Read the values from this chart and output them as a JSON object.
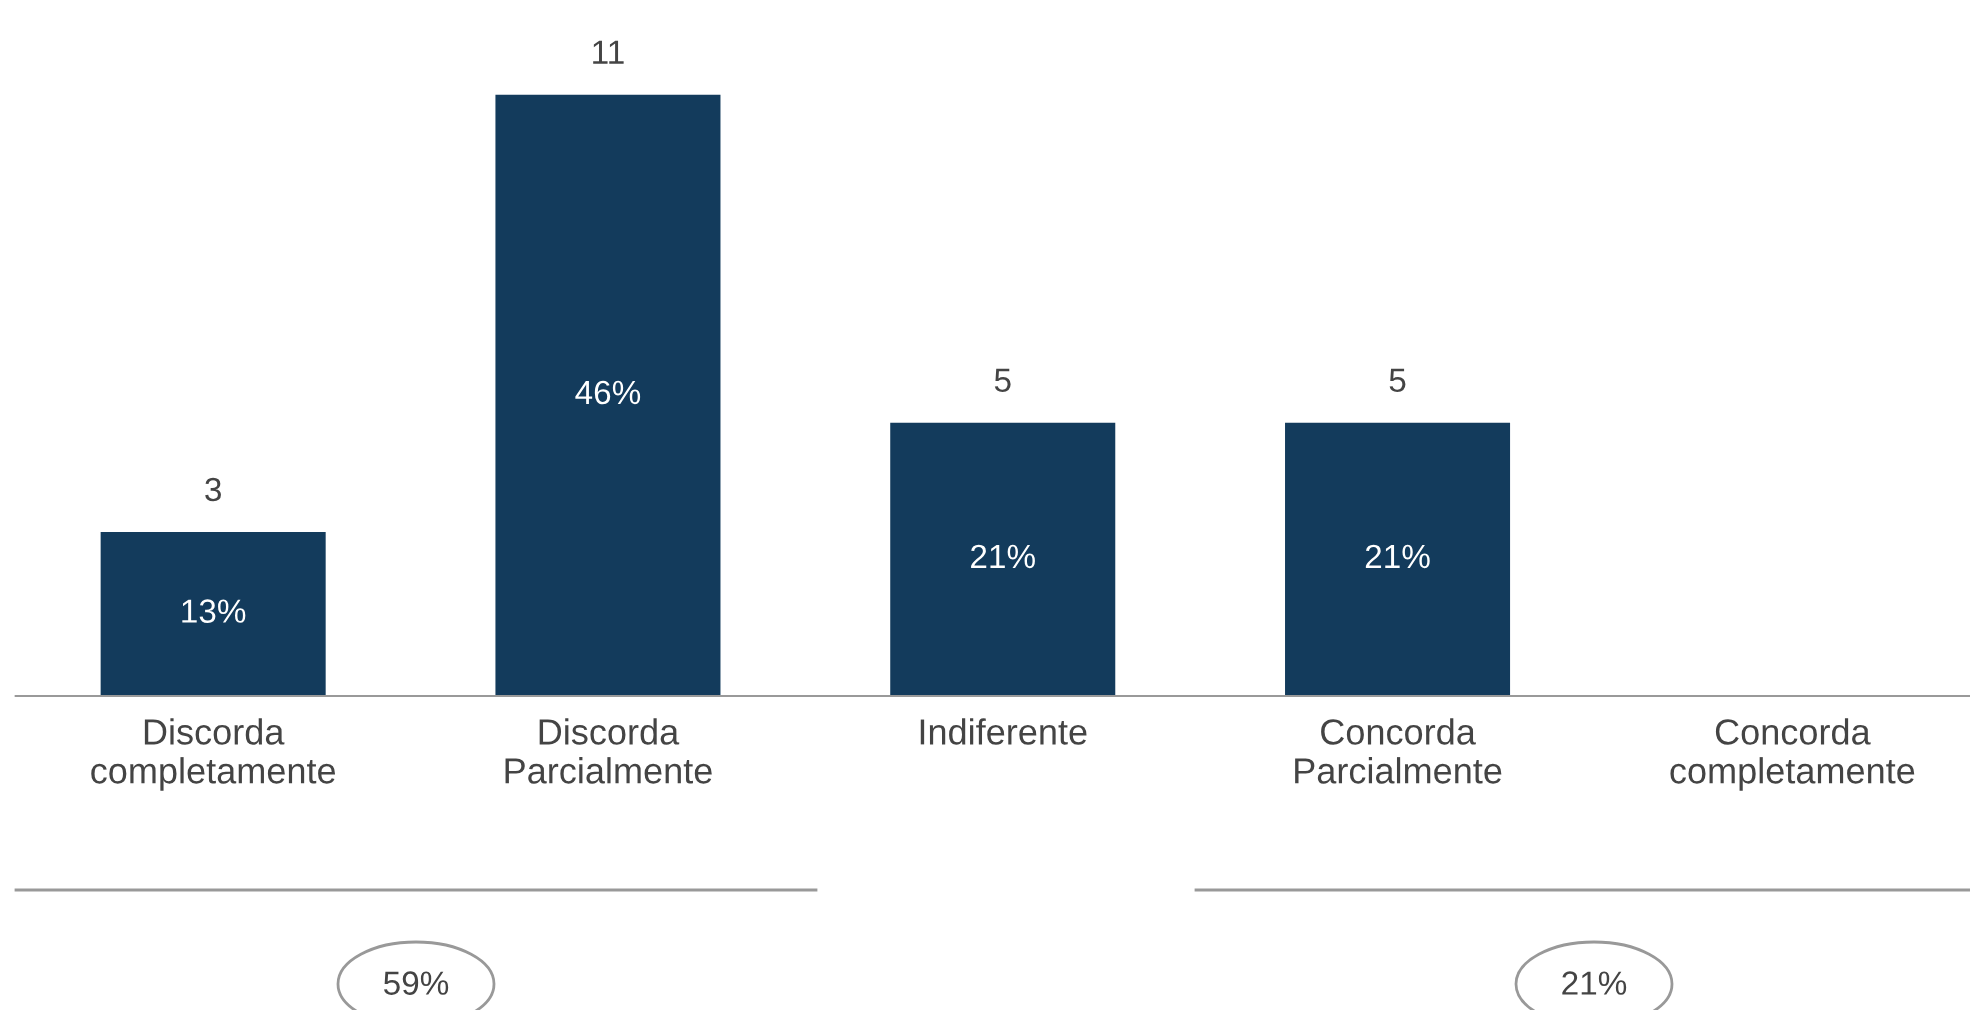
{
  "chart_data": {
    "type": "bar",
    "categories": [
      "Discorda\ncompletamente",
      "Discorda\nParcialmente",
      "Indiferente",
      "Concorda\nParcialmente",
      "Concorda\ncompletamente"
    ],
    "values": [
      3,
      11,
      5,
      5,
      0
    ],
    "color": "#133b5c",
    "value_labels": [
      "3",
      "11",
      "5",
      "5",
      null
    ],
    "annotations": [
      "13%",
      "46%",
      "21%",
      "21%",
      "59%",
      "21%"
    ],
    "grid": false,
    "legend": false
  }
}
